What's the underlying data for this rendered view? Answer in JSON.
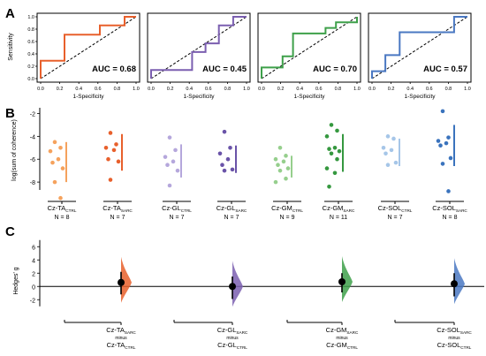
{
  "panel_letters": [
    "A",
    "B",
    "C"
  ],
  "chart_data": [
    {
      "panel": "A",
      "type": "line",
      "xlabel": "1-Specificity",
      "ylabel": "Sensitivity",
      "xlim": [
        0,
        1
      ],
      "ylim": [
        0,
        1
      ],
      "x_ticks": [
        "0.0",
        "0.2",
        "0.4",
        "0.6",
        "0.8",
        "1.0"
      ],
      "y_ticks": [
        "0.0",
        "0.2",
        "0.4",
        "0.6",
        "0.8",
        "1.0"
      ],
      "diagonal_reference": true,
      "series": [
        {
          "color": "#e8602c",
          "auc_label": "AUC = 0.68",
          "points": [
            [
              0,
              0
            ],
            [
              0,
              0.29
            ],
            [
              0.25,
              0.29
            ],
            [
              0.25,
              0.71
            ],
            [
              0.62,
              0.71
            ],
            [
              0.62,
              0.86
            ],
            [
              0.88,
              0.86
            ],
            [
              0.88,
              1
            ],
            [
              1,
              1
            ]
          ]
        },
        {
          "color": "#7b5fb0",
          "auc_label": "AUC = 0.45",
          "points": [
            [
              0,
              0
            ],
            [
              0,
              0.14
            ],
            [
              0.43,
              0.14
            ],
            [
              0.43,
              0.43
            ],
            [
              0.57,
              0.43
            ],
            [
              0.57,
              0.57
            ],
            [
              0.71,
              0.57
            ],
            [
              0.71,
              0.86
            ],
            [
              0.86,
              0.86
            ],
            [
              0.86,
              1
            ],
            [
              1,
              1
            ]
          ]
        },
        {
          "color": "#3ea04a",
          "auc_label": "AUC = 0.70",
          "points": [
            [
              0,
              0
            ],
            [
              0,
              0.18
            ],
            [
              0.22,
              0.18
            ],
            [
              0.22,
              0.36
            ],
            [
              0.33,
              0.36
            ],
            [
              0.33,
              0.73
            ],
            [
              0.67,
              0.73
            ],
            [
              0.67,
              0.82
            ],
            [
              0.78,
              0.82
            ],
            [
              0.78,
              0.91
            ],
            [
              1,
              0.91
            ],
            [
              1,
              1
            ]
          ]
        },
        {
          "color": "#4a78c2",
          "auc_label": "AUC = 0.57",
          "points": [
            [
              0,
              0
            ],
            [
              0,
              0.12
            ],
            [
              0.14,
              0.12
            ],
            [
              0.14,
              0.38
            ],
            [
              0.29,
              0.38
            ],
            [
              0.29,
              0.75
            ],
            [
              0.43,
              0.75
            ],
            [
              0.43,
              0.75
            ],
            [
              0.86,
              0.75
            ],
            [
              0.86,
              1
            ],
            [
              1,
              1
            ]
          ]
        }
      ]
    },
    {
      "panel": "B",
      "type": "scatter",
      "ylabel": "log(sum of coherence)",
      "ylim": [
        -10,
        -1.5
      ],
      "y_ticks": [
        -2,
        -4,
        -6,
        -8
      ],
      "groups": [
        {
          "base": "Cz-TA",
          "sub": "CTRL",
          "n_label": "N = 8",
          "color": "#f5a25d",
          "values": [
            -4.5,
            -5.0,
            -5.3,
            -6.0,
            -6.3,
            -6.8,
            -8.0,
            -9.4
          ],
          "range": [
            -4.5,
            -8.0
          ]
        },
        {
          "base": "Cz-TA",
          "sub": "SARC",
          "n_label": "N = 7",
          "color": "#e8602c",
          "values": [
            -3.7,
            -4.7,
            -5.0,
            -5.2,
            -6.0,
            -6.2,
            -7.8
          ],
          "range": [
            -3.8,
            -7.0
          ]
        },
        {
          "base": "Cz-GL",
          "sub": "CTRL",
          "n_label": "N = 7",
          "color": "#b5a7dc",
          "values": [
            -4.1,
            -5.2,
            -5.8,
            -6.2,
            -6.5,
            -7.0,
            -8.3
          ],
          "range": [
            -4.7,
            -7.6
          ]
        },
        {
          "base": "Cz-GL",
          "sub": "SARC",
          "n_label": "N = 7",
          "color": "#6a53a8",
          "values": [
            -3.6,
            -5.0,
            -5.5,
            -6.0,
            -6.5,
            -6.9,
            -7.0
          ],
          "range": [
            -4.8,
            -7.2
          ]
        },
        {
          "base": "Cz-GM",
          "sub": "CTRL",
          "n_label": "N = 9",
          "color": "#96cf8d",
          "values": [
            -5.0,
            -5.7,
            -6.0,
            -6.2,
            -6.5,
            -6.8,
            -7.0,
            -7.7,
            -8.0
          ],
          "range": [
            -5.7,
            -7.6
          ]
        },
        {
          "base": "Cz-GM",
          "sub": "SARC",
          "n_label": "N = 11",
          "color": "#35983f",
          "values": [
            -3.0,
            -3.5,
            -4.0,
            -5.0,
            -5.1,
            -5.3,
            -5.5,
            -6.0,
            -6.8,
            -7.2,
            -8.4
          ],
          "range": [
            -3.8,
            -7.1
          ]
        },
        {
          "base": "Cz-SOL",
          "sub": "CTRL",
          "n_label": "N = 7",
          "color": "#a6c6e8",
          "values": [
            -4.0,
            -4.2,
            -5.0,
            -5.2,
            -5.5,
            -6.3,
            -6.5
          ],
          "range": [
            -4.2,
            -6.6
          ]
        },
        {
          "base": "Cz-SOL",
          "sub": "SARC",
          "n_label": "N = 8",
          "color": "#3a73bd",
          "values": [
            -1.8,
            -4.1,
            -4.4,
            -4.6,
            -4.8,
            -5.9,
            -6.4,
            -8.8
          ],
          "range": [
            -3.0,
            -6.6
          ]
        }
      ]
    },
    {
      "panel": "C",
      "type": "scatter",
      "ylabel": "Hedges' g",
      "ylim": [
        -4.5,
        7.5
      ],
      "y_ticks": [
        6,
        4,
        2,
        0,
        -2
      ],
      "estimates": [
        {
          "color": "#e8602c",
          "g": 0.6,
          "ci": [
            -1.2,
            2.2
          ],
          "top_base": "Cz-TA",
          "top_sub": "SARC",
          "minus": "minus",
          "bot_base": "Cz-TA",
          "bot_sub": "CTRL"
        },
        {
          "color": "#7b5fb0",
          "g": 0.0,
          "ci": [
            -1.9,
            1.5
          ],
          "top_base": "Cz-GL",
          "top_sub": "SARC",
          "minus": "minus",
          "bot_base": "Cz-GL",
          "bot_sub": "CTRL"
        },
        {
          "color": "#3ea04a",
          "g": 0.7,
          "ci": [
            -0.9,
            2.0
          ],
          "top_base": "Cz-GM",
          "top_sub": "SARC",
          "minus": "minus",
          "bot_base": "Cz-GM",
          "bot_sub": "CTRL"
        },
        {
          "color": "#4a78c2",
          "g": 0.4,
          "ci": [
            -1.5,
            2.0
          ],
          "top_base": "Cz-SOL",
          "top_sub": "SARC",
          "minus": "minus",
          "bot_base": "Cz-SOL",
          "bot_sub": "CTRL"
        }
      ]
    }
  ]
}
